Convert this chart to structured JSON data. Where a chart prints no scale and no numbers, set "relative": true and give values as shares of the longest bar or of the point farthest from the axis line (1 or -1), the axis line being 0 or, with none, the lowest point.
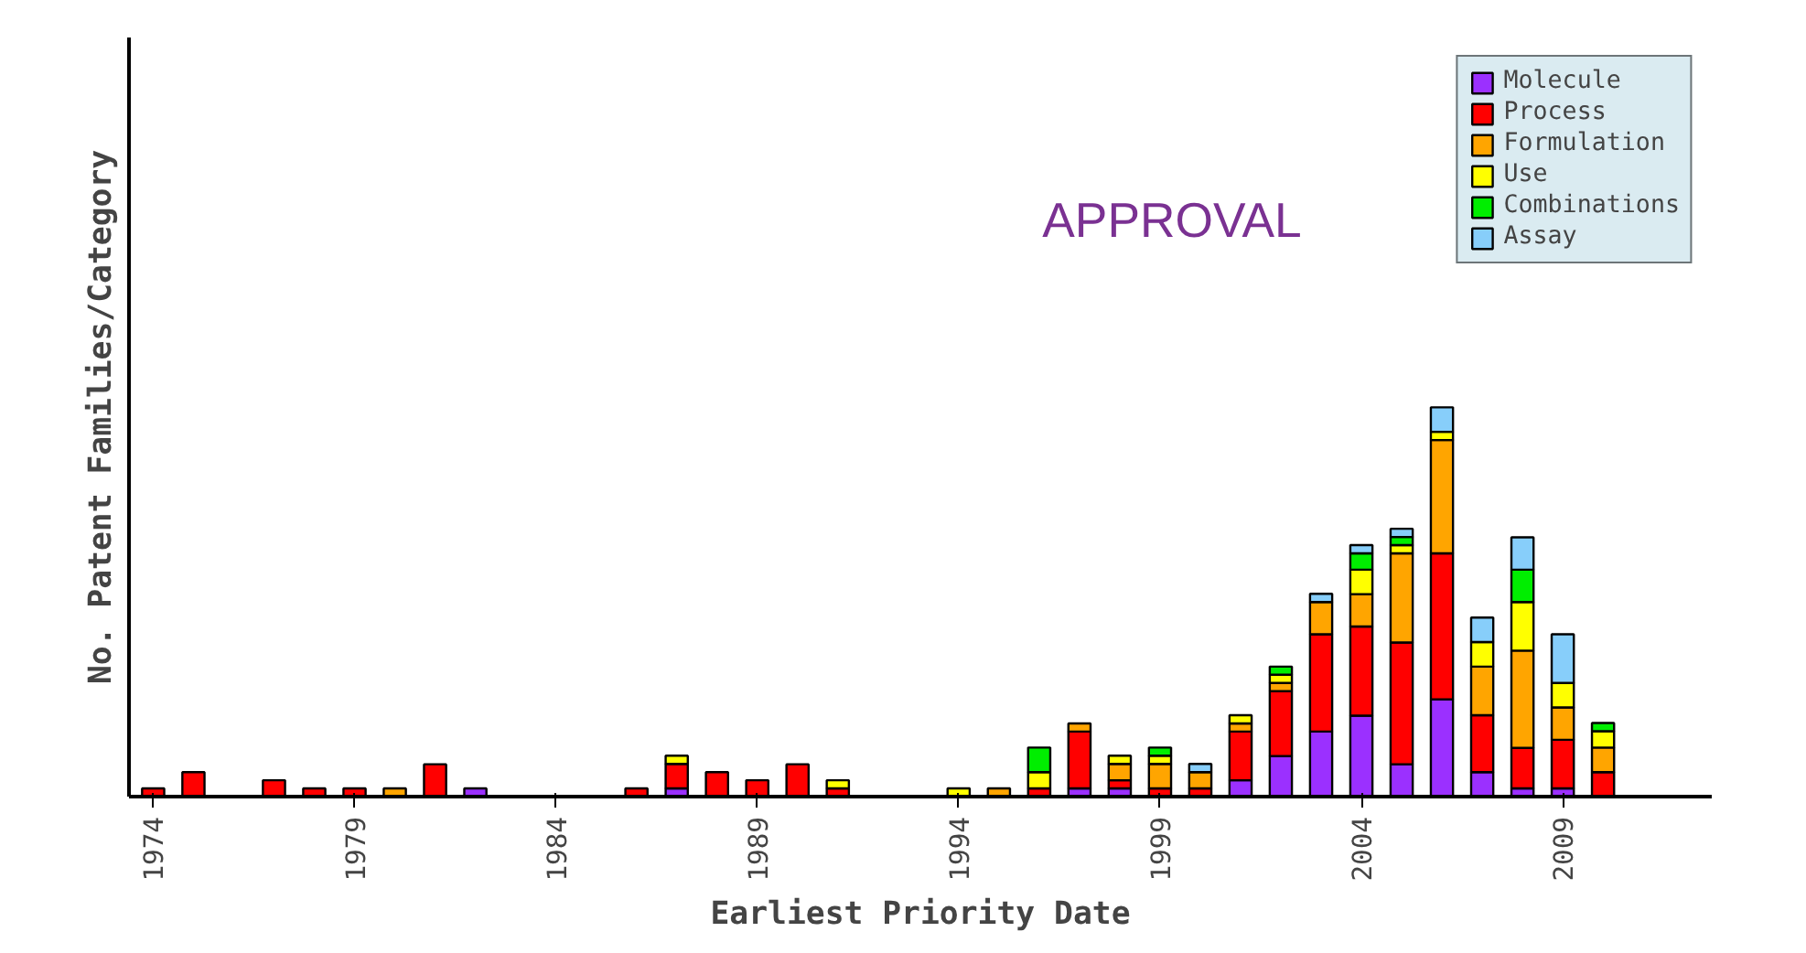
{
  "chart_data": {
    "type": "bar",
    "stacked": true,
    "relative": true,
    "xlabel": "Earliest Priority Date",
    "ylabel": "No. Patent Families/Category",
    "x": [
      1974,
      1975,
      1976,
      1977,
      1978,
      1979,
      1980,
      1981,
      1982,
      1983,
      1984,
      1985,
      1986,
      1987,
      1988,
      1989,
      1990,
      1991,
      1992,
      1993,
      1994,
      1995,
      1996,
      1997,
      1998,
      1999,
      2000,
      2001,
      2002,
      2003,
      2004,
      2005,
      2006,
      2007,
      2008,
      2009,
      2010
    ],
    "xlim": [
      1973.4,
      2012.7
    ],
    "xticks": [
      1974,
      1979,
      1984,
      1989,
      1994,
      1999,
      2004,
      2009
    ],
    "legend": "top right",
    "annotations": [
      "APPROVAL"
    ],
    "series": [
      {
        "name": "Molecule",
        "color": "#9b30ff",
        "values": [
          null,
          null,
          null,
          null,
          null,
          null,
          null,
          null,
          0.021,
          null,
          null,
          null,
          null,
          0.021,
          null,
          null,
          null,
          null,
          null,
          null,
          null,
          null,
          null,
          0.021,
          0.021,
          null,
          null,
          0.042,
          0.104,
          0.167,
          0.208,
          0.083,
          0.25,
          0.063,
          0.021,
          0.021,
          null
        ]
      },
      {
        "name": "Process",
        "color": "#ff0000",
        "values": [
          0.021,
          0.063,
          null,
          0.042,
          0.021,
          0.021,
          null,
          0.083,
          null,
          null,
          null,
          null,
          0.021,
          0.063,
          0.063,
          0.042,
          0.083,
          0.021,
          null,
          null,
          null,
          null,
          0.021,
          0.146,
          0.021,
          0.021,
          0.021,
          0.125,
          0.167,
          0.25,
          0.229,
          0.313,
          0.375,
          0.146,
          0.104,
          0.125,
          0.063
        ]
      },
      {
        "name": "Formulation",
        "color": "#ffa500",
        "values": [
          null,
          null,
          null,
          null,
          null,
          null,
          0.021,
          null,
          null,
          null,
          null,
          null,
          null,
          null,
          null,
          null,
          null,
          null,
          null,
          null,
          null,
          0.021,
          null,
          0.021,
          0.042,
          0.063,
          0.042,
          0.021,
          0.021,
          0.083,
          0.083,
          0.229,
          0.291,
          0.125,
          0.25,
          0.083,
          0.063
        ]
      },
      {
        "name": "Use",
        "color": "#ffff00",
        "values": [
          null,
          null,
          null,
          null,
          null,
          null,
          null,
          null,
          null,
          null,
          null,
          null,
          null,
          0.021,
          null,
          null,
          null,
          0.021,
          null,
          null,
          0.021,
          null,
          0.042,
          null,
          0.021,
          0.021,
          null,
          0.021,
          0.021,
          null,
          0.063,
          0.021,
          0.021,
          0.063,
          0.125,
          0.063,
          0.042
        ]
      },
      {
        "name": "Combinations",
        "color": "#00ee00",
        "values": [
          null,
          null,
          null,
          null,
          null,
          null,
          null,
          null,
          null,
          null,
          null,
          null,
          null,
          null,
          null,
          null,
          null,
          null,
          null,
          null,
          null,
          null,
          0.063,
          null,
          null,
          0.021,
          null,
          null,
          0.021,
          null,
          0.042,
          0.021,
          null,
          null,
          0.083,
          null,
          0.021
        ]
      },
      {
        "name": "Assay",
        "color": "#87cefa",
        "values": [
          null,
          null,
          null,
          null,
          null,
          null,
          null,
          null,
          null,
          null,
          null,
          null,
          null,
          null,
          null,
          null,
          null,
          null,
          null,
          null,
          null,
          null,
          null,
          null,
          null,
          null,
          0.021,
          null,
          null,
          0.021,
          0.021,
          0.021,
          0.063,
          0.063,
          0.083,
          0.125,
          null
        ]
      }
    ]
  }
}
